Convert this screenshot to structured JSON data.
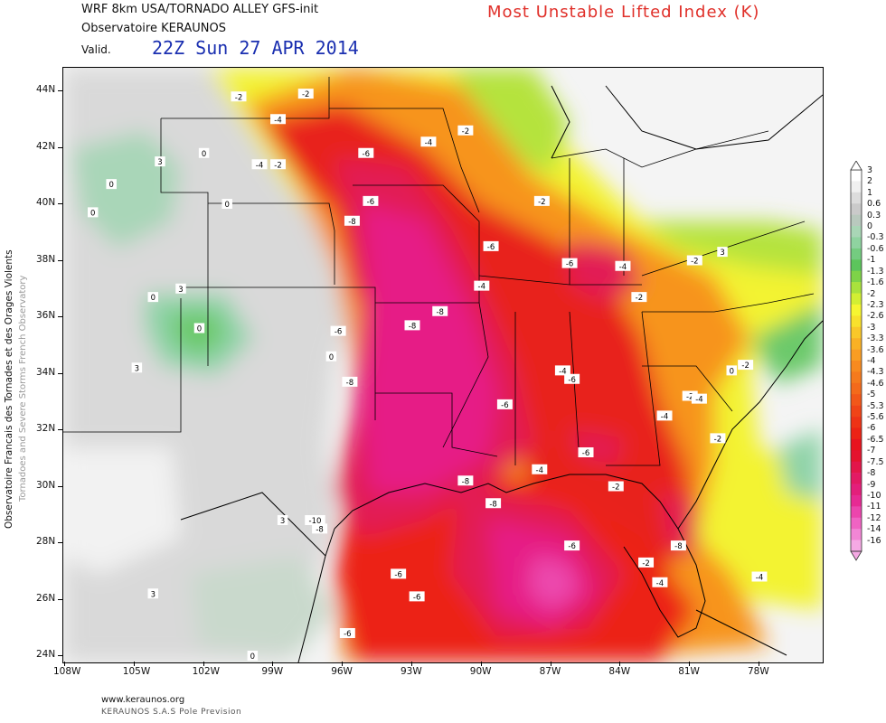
{
  "header": {
    "model": "WRF 8km USA/TORNADO ALLEY   GFS-init",
    "observatory": "Observatoire KERAUNOS",
    "valid_label": "Valid.",
    "valid_time": "22Z Sun 27 APR 2014",
    "title": "Most Unstable Lifted Index (K)"
  },
  "footer": {
    "url": "www.keraunos.org",
    "org": "KERAUNOS S.A.S Pole Prevision"
  },
  "side": {
    "french": "Observatoire Francais des Tornades et des Orages Violents",
    "english": "Tornadoes and Severe Storms French Observatory"
  },
  "axes": {
    "lat_labels": [
      "44N",
      "42N",
      "40N",
      "38N",
      "36N",
      "34N",
      "32N",
      "30N",
      "28N",
      "26N",
      "24N"
    ],
    "lon_labels": [
      "108W",
      "105W",
      "102W",
      "99W",
      "96W",
      "93W",
      "90W",
      "87W",
      "84W",
      "81W",
      "78W"
    ]
  },
  "colorbar": {
    "labels": [
      "3",
      "2",
      "1",
      "0.6",
      "0.3",
      "0",
      "-0.3",
      "-0.6",
      "-1",
      "-1.3",
      "-1.6",
      "-2",
      "-2.3",
      "-2.6",
      "-3",
      "-3.3",
      "-3.6",
      "-4",
      "-4.3",
      "-4.6",
      "-5",
      "-5.3",
      "-5.6",
      "-6",
      "-6.5",
      "-7",
      "-7.5",
      "-8",
      "-9",
      "-10",
      "-11",
      "-12",
      "-14",
      "-16"
    ],
    "colors": [
      "#ffffff",
      "#f0f0f0",
      "#dcdcdc",
      "#cacaca",
      "#b9c9be",
      "#a9d6b6",
      "#8fd3a0",
      "#74cc80",
      "#5cc55c",
      "#7ed348",
      "#a9e23c",
      "#d2ef33",
      "#f6f631",
      "#f8e12c",
      "#f9c829",
      "#f9b125",
      "#f99d22",
      "#f78a1f",
      "#f57a1d",
      "#f46a1b",
      "#f25719",
      "#f04417",
      "#ee3316",
      "#ec2315",
      "#e8131e",
      "#e5132e",
      "#e3164a",
      "#e21a64",
      "#e31f7b",
      "#e72a93",
      "#ec45ad",
      "#f063c3",
      "#f286d5",
      "#f5a9e4"
    ],
    "palette": {
      "white": "#ffffff",
      "gray_light": "#e6e6e6",
      "gray": "#c9c9c9",
      "teal_pale": "#b8d8c0",
      "teal": "#8fd3a8",
      "green": "#6cc96a",
      "lime": "#b5e33c",
      "yellow": "#f3f332",
      "orange_lt": "#f9c42a",
      "orange": "#f7941f",
      "red_orange": "#f25a1a",
      "red": "#e8201a",
      "crimson": "#e21a55",
      "magenta": "#e61e86",
      "pink": "#ec48ae",
      "pink_light": "#f290d8"
    }
  },
  "contour_labels": [
    {
      "text": "-2",
      "lon": -100.5,
      "lat": 43.8
    },
    {
      "text": "-2",
      "lon": -97.6,
      "lat": 43.9
    },
    {
      "text": "-4",
      "lon": -98.8,
      "lat": 43.0
    },
    {
      "text": "-4",
      "lon": -99.6,
      "lat": 41.4
    },
    {
      "text": "-2",
      "lon": -98.8,
      "lat": 41.4
    },
    {
      "text": "0",
      "lon": -102.0,
      "lat": 41.8
    },
    {
      "text": "3",
      "lon": -103.9,
      "lat": 41.5
    },
    {
      "text": "0",
      "lon": -106.0,
      "lat": 40.7
    },
    {
      "text": "0",
      "lon": -106.8,
      "lat": 39.7
    },
    {
      "text": "0",
      "lon": -101.0,
      "lat": 40.0
    },
    {
      "text": "3",
      "lon": -103.0,
      "lat": 37.0
    },
    {
      "text": "0",
      "lon": -104.2,
      "lat": 36.7
    },
    {
      "text": "0",
      "lon": -102.2,
      "lat": 35.6
    },
    {
      "text": "3",
      "lon": -104.9,
      "lat": 34.2
    },
    {
      "text": "-6",
      "lon": -95.0,
      "lat": 41.8
    },
    {
      "text": "-4",
      "lon": -92.3,
      "lat": 42.2
    },
    {
      "text": "-2",
      "lon": -90.7,
      "lat": 42.6
    },
    {
      "text": "-6",
      "lon": -94.8,
      "lat": 40.1
    },
    {
      "text": "-8",
      "lon": -95.6,
      "lat": 39.4
    },
    {
      "text": "-2",
      "lon": -87.4,
      "lat": 40.1
    },
    {
      "text": "-6",
      "lon": -89.6,
      "lat": 38.5
    },
    {
      "text": "-6",
      "lon": -86.2,
      "lat": 37.9
    },
    {
      "text": "-4",
      "lon": -83.9,
      "lat": 37.8
    },
    {
      "text": "-2",
      "lon": -80.8,
      "lat": 38.0
    },
    {
      "text": "3",
      "lon": -79.6,
      "lat": 38.3
    },
    {
      "text": "-4",
      "lon": -90.0,
      "lat": 37.1
    },
    {
      "text": "-2",
      "lon": -83.2,
      "lat": 36.7
    },
    {
      "text": "-6",
      "lon": -96.2,
      "lat": 35.5
    },
    {
      "text": "-8",
      "lon": -93.0,
      "lat": 35.7
    },
    {
      "text": "-8",
      "lon": -91.8,
      "lat": 36.2
    },
    {
      "text": "0",
      "lon": -96.5,
      "lat": 34.6
    },
    {
      "text": "-8",
      "lon": -95.7,
      "lat": 33.7
    },
    {
      "text": "-4",
      "lon": -86.5,
      "lat": 34.1
    },
    {
      "text": "-6",
      "lon": -86.1,
      "lat": 33.8
    },
    {
      "text": "-6",
      "lon": -89.0,
      "lat": 32.9
    },
    {
      "text": "-2",
      "lon": -81.0,
      "lat": 33.2
    },
    {
      "text": "-4",
      "lon": -80.6,
      "lat": 33.1
    },
    {
      "text": "0",
      "lon": -79.2,
      "lat": 34.1
    },
    {
      "text": "-2",
      "lon": -78.6,
      "lat": 34.3
    },
    {
      "text": "-4",
      "lon": -82.1,
      "lat": 32.5
    },
    {
      "text": "-2",
      "lon": -79.8,
      "lat": 31.7
    },
    {
      "text": "-6",
      "lon": -85.5,
      "lat": 31.2
    },
    {
      "text": "-4",
      "lon": -87.5,
      "lat": 30.6
    },
    {
      "text": "-2",
      "lon": -84.2,
      "lat": 30.0
    },
    {
      "text": "-8",
      "lon": -90.7,
      "lat": 30.2
    },
    {
      "text": "-8",
      "lon": -89.5,
      "lat": 29.4
    },
    {
      "text": "-10",
      "lon": -97.2,
      "lat": 28.8
    },
    {
      "text": "-8",
      "lon": -97.0,
      "lat": 28.5
    },
    {
      "text": "3",
      "lon": -98.6,
      "lat": 28.8
    },
    {
      "text": "-6",
      "lon": -86.1,
      "lat": 27.9
    },
    {
      "text": "-8",
      "lon": -81.5,
      "lat": 27.9
    },
    {
      "text": "-2",
      "lon": -82.9,
      "lat": 27.3
    },
    {
      "text": "-4",
      "lon": -82.3,
      "lat": 26.6
    },
    {
      "text": "-4",
      "lon": -78.0,
      "lat": 26.8
    },
    {
      "text": "-6",
      "lon": -93.6,
      "lat": 26.9
    },
    {
      "text": "-6",
      "lon": -92.8,
      "lat": 26.1
    },
    {
      "text": "3",
      "lon": -104.2,
      "lat": 26.2
    },
    {
      "text": "-6",
      "lon": -95.8,
      "lat": 24.8
    },
    {
      "text": "0",
      "lon": -99.9,
      "lat": 24.0
    }
  ]
}
